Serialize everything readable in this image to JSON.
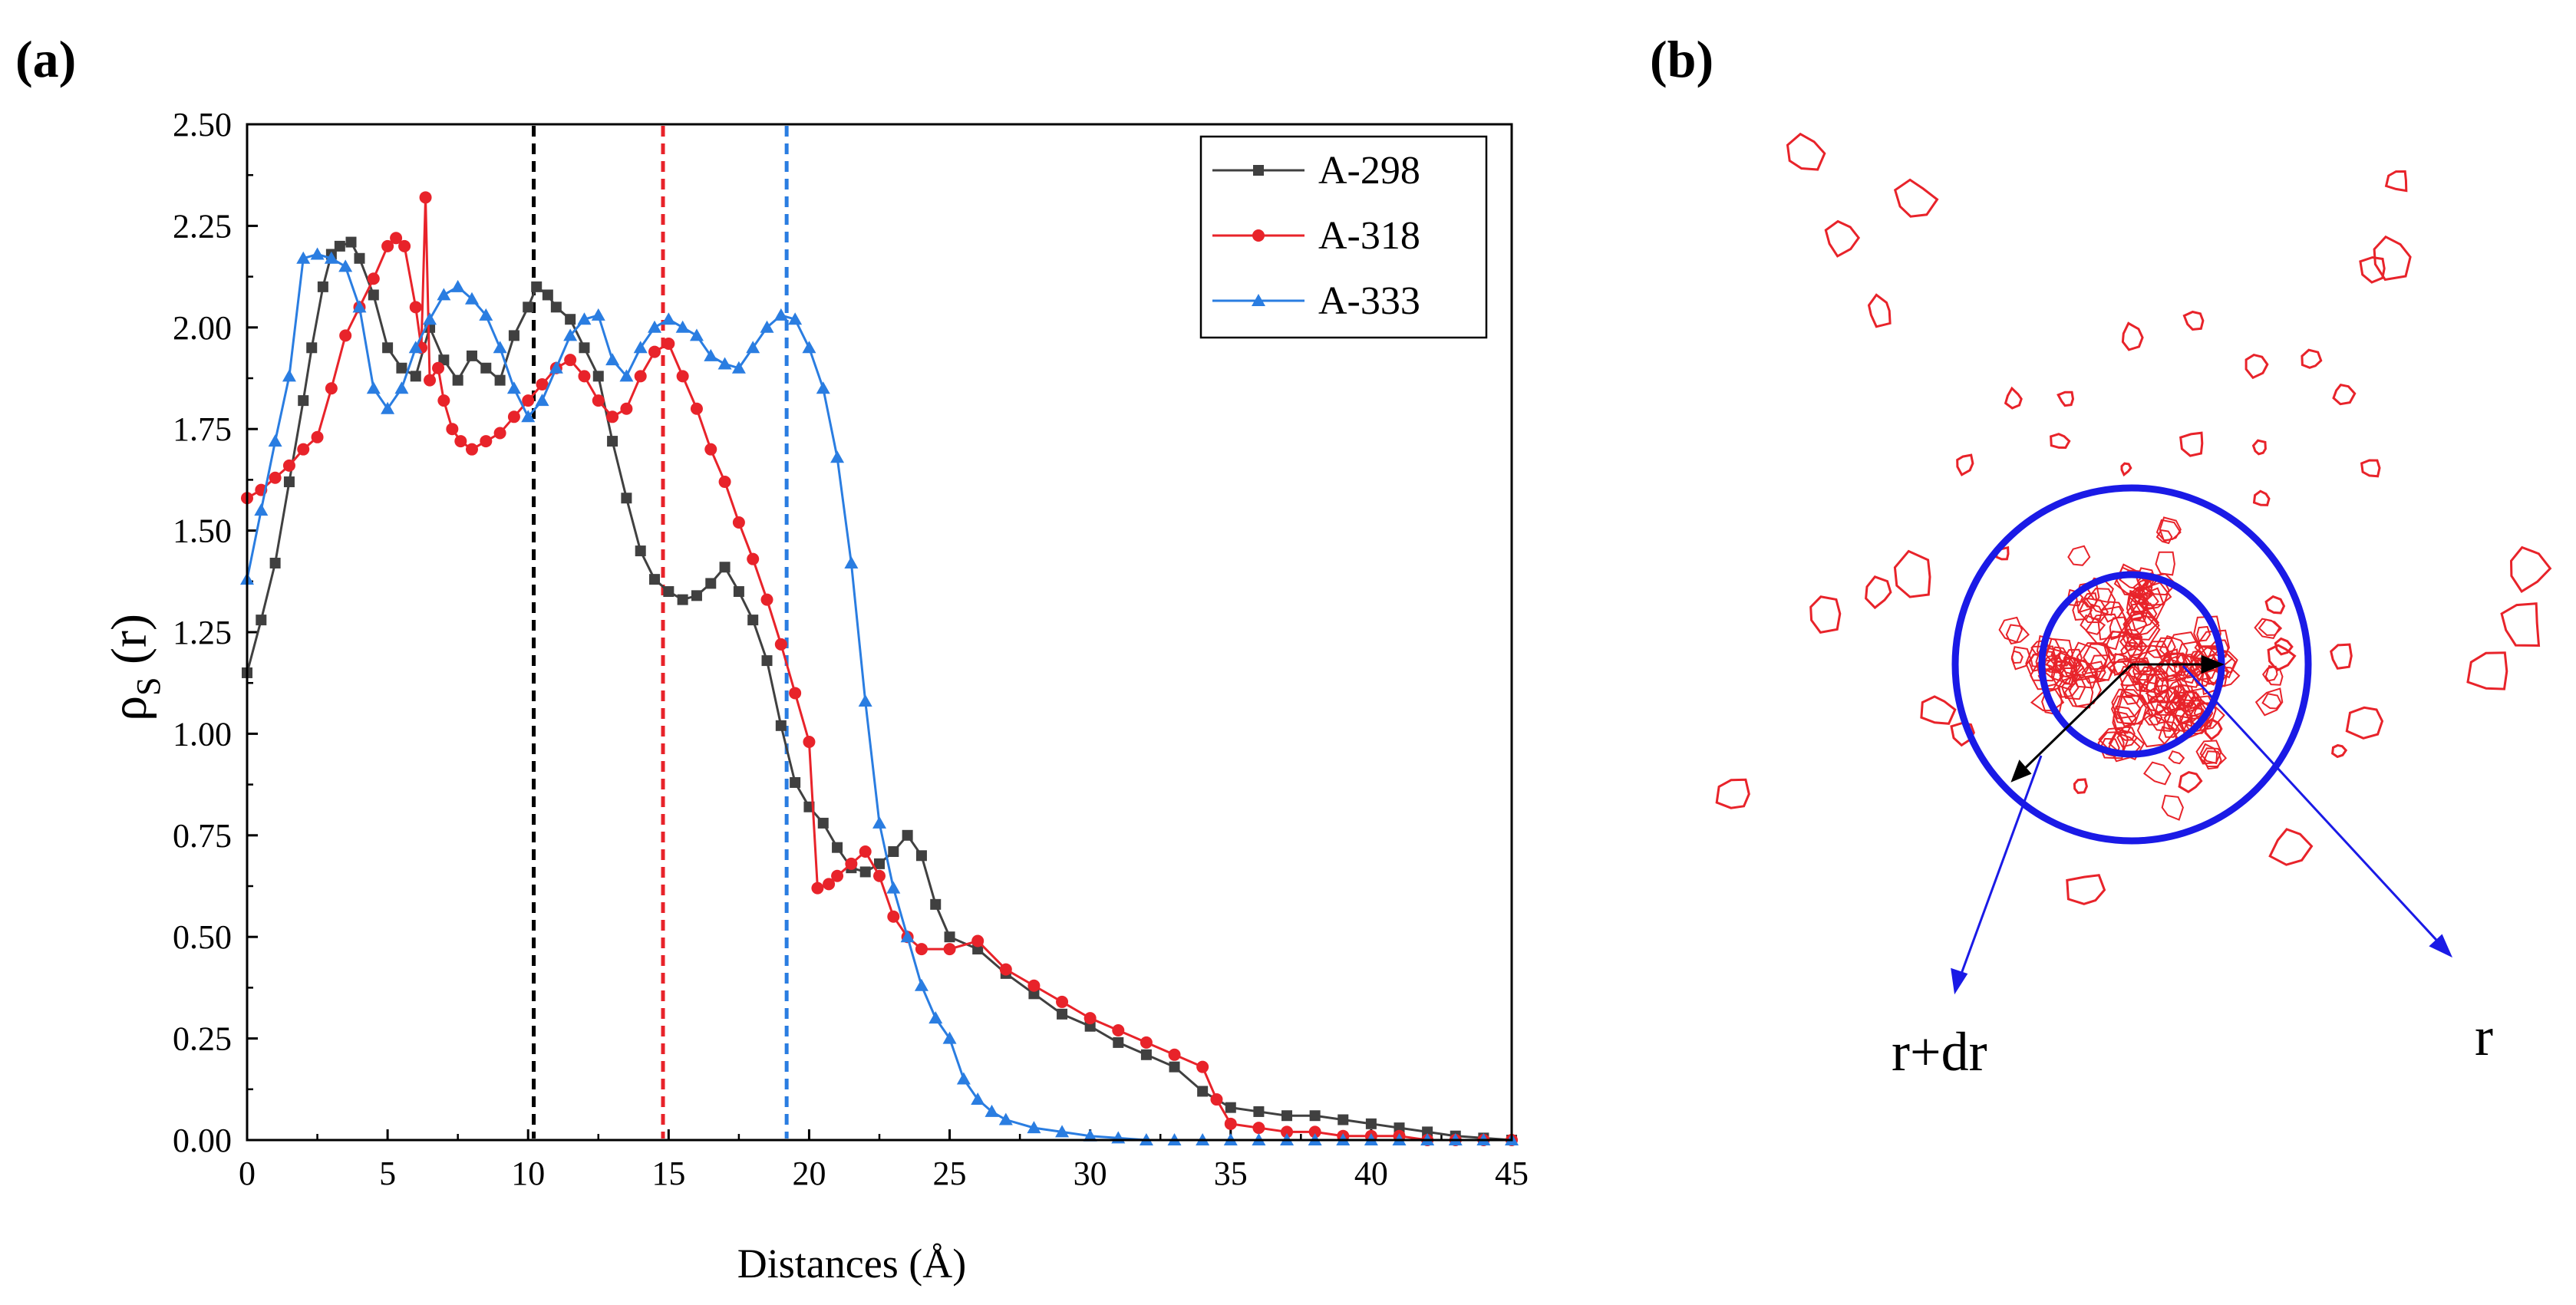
{
  "figure": {
    "panel_a_label": "(a)",
    "panel_b_label": "(b)"
  },
  "chart_data": [
    {
      "type": "line",
      "panel": "(a)",
      "title": "",
      "xlabel": "Distances (Å)",
      "ylabel_main": "ρ",
      "ylabel_sub": "S",
      "ylabel_tail": " (r)",
      "xlim": [
        0,
        45
      ],
      "ylim": [
        0,
        2.5
      ],
      "xticks": [
        0,
        5,
        10,
        15,
        20,
        25,
        30,
        35,
        40,
        45
      ],
      "yticks": [
        "0.00",
        "0.25",
        "0.50",
        "0.75",
        "1.00",
        "1.25",
        "1.50",
        "1.75",
        "2.00",
        "2.25",
        "2.50"
      ],
      "legend_position": "top-right",
      "vlines": [
        {
          "x": 10.2,
          "color": "#000000"
        },
        {
          "x": 14.8,
          "color": "#e8232a"
        },
        {
          "x": 19.2,
          "color": "#2a7de1"
        }
      ],
      "series": [
        {
          "name": "A-298",
          "color": "#404040",
          "marker": "square",
          "points": [
            [
              0,
              1.15
            ],
            [
              0.5,
              1.28
            ],
            [
              1,
              1.42
            ],
            [
              1.5,
              1.62
            ],
            [
              2,
              1.82
            ],
            [
              2.3,
              1.95
            ],
            [
              2.7,
              2.1
            ],
            [
              3,
              2.18
            ],
            [
              3.3,
              2.2
            ],
            [
              3.7,
              2.21
            ],
            [
              4,
              2.17
            ],
            [
              4.5,
              2.08
            ],
            [
              5,
              1.95
            ],
            [
              5.5,
              1.9
            ],
            [
              6,
              1.88
            ],
            [
              6.5,
              2.0
            ],
            [
              7,
              1.92
            ],
            [
              7.5,
              1.87
            ],
            [
              8,
              1.93
            ],
            [
              8.5,
              1.9
            ],
            [
              9,
              1.87
            ],
            [
              9.5,
              1.98
            ],
            [
              10,
              2.05
            ],
            [
              10.3,
              2.1
            ],
            [
              10.7,
              2.08
            ],
            [
              11,
              2.05
            ],
            [
              11.5,
              2.02
            ],
            [
              12,
              1.95
            ],
            [
              12.5,
              1.88
            ],
            [
              13,
              1.72
            ],
            [
              13.5,
              1.58
            ],
            [
              14,
              1.45
            ],
            [
              14.5,
              1.38
            ],
            [
              15,
              1.35
            ],
            [
              15.5,
              1.33
            ],
            [
              16,
              1.34
            ],
            [
              16.5,
              1.37
            ],
            [
              17,
              1.41
            ],
            [
              17.5,
              1.35
            ],
            [
              18,
              1.28
            ],
            [
              18.5,
              1.18
            ],
            [
              19,
              1.02
            ],
            [
              19.5,
              0.88
            ],
            [
              20,
              0.82
            ],
            [
              20.5,
              0.78
            ],
            [
              21,
              0.72
            ],
            [
              21.5,
              0.67
            ],
            [
              22,
              0.66
            ],
            [
              22.5,
              0.68
            ],
            [
              23,
              0.71
            ],
            [
              23.5,
              0.75
            ],
            [
              24,
              0.7
            ],
            [
              24.5,
              0.58
            ],
            [
              25,
              0.5
            ],
            [
              26,
              0.47
            ],
            [
              27,
              0.41
            ],
            [
              28,
              0.36
            ],
            [
              29,
              0.31
            ],
            [
              30,
              0.28
            ],
            [
              31,
              0.24
            ],
            [
              32,
              0.21
            ],
            [
              33,
              0.18
            ],
            [
              34,
              0.12
            ],
            [
              35,
              0.08
            ],
            [
              36,
              0.07
            ],
            [
              37,
              0.06
            ],
            [
              38,
              0.06
            ],
            [
              39,
              0.05
            ],
            [
              40,
              0.04
            ],
            [
              41,
              0.03
            ],
            [
              42,
              0.02
            ],
            [
              43,
              0.01
            ],
            [
              44,
              0.005
            ],
            [
              45,
              0.0
            ]
          ]
        },
        {
          "name": "A-318",
          "color": "#e8232a",
          "marker": "circle",
          "points": [
            [
              0,
              1.58
            ],
            [
              0.5,
              1.6
            ],
            [
              1,
              1.63
            ],
            [
              1.5,
              1.66
            ],
            [
              2,
              1.7
            ],
            [
              2.5,
              1.73
            ],
            [
              3,
              1.85
            ],
            [
              3.5,
              1.98
            ],
            [
              4,
              2.05
            ],
            [
              4.5,
              2.12
            ],
            [
              5,
              2.2
            ],
            [
              5.3,
              2.22
            ],
            [
              5.6,
              2.2
            ],
            [
              6,
              2.05
            ],
            [
              6.2,
              1.95
            ],
            [
              6.35,
              2.32
            ],
            [
              6.5,
              1.87
            ],
            [
              6.8,
              1.9
            ],
            [
              7,
              1.82
            ],
            [
              7.3,
              1.75
            ],
            [
              7.6,
              1.72
            ],
            [
              8,
              1.7
            ],
            [
              8.5,
              1.72
            ],
            [
              9,
              1.74
            ],
            [
              9.5,
              1.78
            ],
            [
              10,
              1.82
            ],
            [
              10.5,
              1.86
            ],
            [
              11,
              1.9
            ],
            [
              11.5,
              1.92
            ],
            [
              12,
              1.88
            ],
            [
              12.5,
              1.82
            ],
            [
              13,
              1.78
            ],
            [
              13.5,
              1.8
            ],
            [
              14,
              1.88
            ],
            [
              14.5,
              1.94
            ],
            [
              15,
              1.96
            ],
            [
              15.5,
              1.88
            ],
            [
              16,
              1.8
            ],
            [
              16.5,
              1.7
            ],
            [
              17,
              1.62
            ],
            [
              17.5,
              1.52
            ],
            [
              18,
              1.43
            ],
            [
              18.5,
              1.33
            ],
            [
              19,
              1.22
            ],
            [
              19.5,
              1.1
            ],
            [
              20,
              0.98
            ],
            [
              20.3,
              0.62
            ],
            [
              20.7,
              0.63
            ],
            [
              21,
              0.65
            ],
            [
              21.5,
              0.68
            ],
            [
              22,
              0.71
            ],
            [
              22.5,
              0.65
            ],
            [
              23,
              0.55
            ],
            [
              23.5,
              0.5
            ],
            [
              24,
              0.47
            ],
            [
              25,
              0.47
            ],
            [
              26,
              0.49
            ],
            [
              27,
              0.42
            ],
            [
              28,
              0.38
            ],
            [
              29,
              0.34
            ],
            [
              30,
              0.3
            ],
            [
              31,
              0.27
            ],
            [
              32,
              0.24
            ],
            [
              33,
              0.21
            ],
            [
              34,
              0.18
            ],
            [
              34.5,
              0.1
            ],
            [
              35,
              0.04
            ],
            [
              36,
              0.03
            ],
            [
              37,
              0.02
            ],
            [
              38,
              0.02
            ],
            [
              39,
              0.01
            ],
            [
              40,
              0.01
            ],
            [
              41,
              0.01
            ],
            [
              42,
              0.0
            ],
            [
              43,
              0.0
            ],
            [
              44,
              0.0
            ],
            [
              45,
              0.0
            ]
          ]
        },
        {
          "name": "A-333",
          "color": "#2a7de1",
          "marker": "triangle",
          "points": [
            [
              0,
              1.38
            ],
            [
              0.5,
              1.55
            ],
            [
              1,
              1.72
            ],
            [
              1.5,
              1.88
            ],
            [
              2,
              2.17
            ],
            [
              2.5,
              2.18
            ],
            [
              3,
              2.17
            ],
            [
              3.5,
              2.15
            ],
            [
              4,
              2.05
            ],
            [
              4.5,
              1.85
            ],
            [
              5,
              1.8
            ],
            [
              5.5,
              1.85
            ],
            [
              6,
              1.95
            ],
            [
              6.5,
              2.02
            ],
            [
              7,
              2.08
            ],
            [
              7.5,
              2.1
            ],
            [
              8,
              2.07
            ],
            [
              8.5,
              2.03
            ],
            [
              9,
              1.95
            ],
            [
              9.5,
              1.85
            ],
            [
              10,
              1.78
            ],
            [
              10.5,
              1.82
            ],
            [
              11,
              1.9
            ],
            [
              11.5,
              1.98
            ],
            [
              12,
              2.02
            ],
            [
              12.5,
              2.03
            ],
            [
              13,
              1.92
            ],
            [
              13.5,
              1.88
            ],
            [
              14,
              1.95
            ],
            [
              14.5,
              2.0
            ],
            [
              15,
              2.02
            ],
            [
              15.5,
              2.0
            ],
            [
              16,
              1.98
            ],
            [
              16.5,
              1.93
            ],
            [
              17,
              1.91
            ],
            [
              17.5,
              1.9
            ],
            [
              18,
              1.95
            ],
            [
              18.5,
              2.0
            ],
            [
              19,
              2.03
            ],
            [
              19.5,
              2.02
            ],
            [
              20,
              1.95
            ],
            [
              20.5,
              1.85
            ],
            [
              21,
              1.68
            ],
            [
              21.5,
              1.42
            ],
            [
              22,
              1.08
            ],
            [
              22.5,
              0.78
            ],
            [
              23,
              0.62
            ],
            [
              23.5,
              0.5
            ],
            [
              24,
              0.38
            ],
            [
              24.5,
              0.3
            ],
            [
              25,
              0.25
            ],
            [
              25.5,
              0.15
            ],
            [
              26,
              0.1
            ],
            [
              26.5,
              0.07
            ],
            [
              27,
              0.05
            ],
            [
              28,
              0.03
            ],
            [
              29,
              0.02
            ],
            [
              30,
              0.01
            ],
            [
              31,
              0.005
            ],
            [
              32,
              0.0
            ],
            [
              33,
              0.0
            ],
            [
              34,
              0.0
            ],
            [
              35,
              0.0
            ],
            [
              36,
              0.0
            ],
            [
              37,
              0.0
            ],
            [
              38,
              0.0
            ],
            [
              39,
              0.0
            ],
            [
              40,
              0.0
            ],
            [
              41,
              0.0
            ],
            [
              42,
              0.0
            ],
            [
              43,
              0.0
            ],
            [
              44,
              0.0
            ],
            [
              45,
              0.0
            ]
          ]
        }
      ]
    },
    {
      "type": "diagram",
      "panel": "(b)",
      "annotations": [
        "r+dr",
        "r"
      ],
      "outer_circle_color": "#1a1ae6",
      "inner_circle_color": "#1a1ae6",
      "cluster_color": "#e8232a"
    }
  ]
}
